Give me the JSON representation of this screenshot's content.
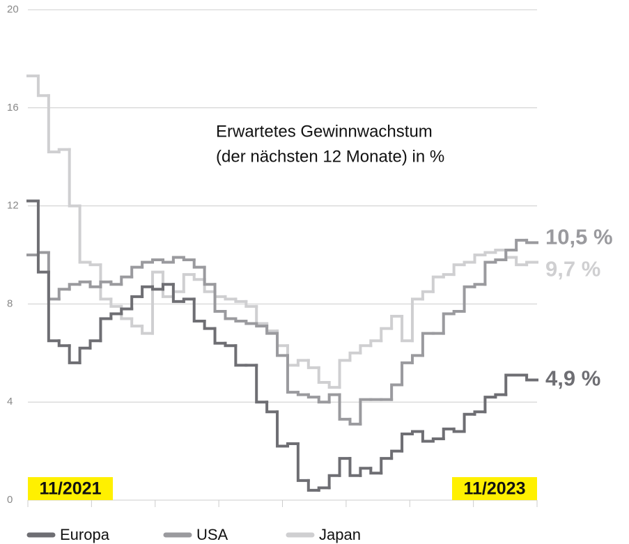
{
  "chart_data": {
    "type": "step-line",
    "title": "Erwartetes Gewinnwachstum",
    "subtitle": "(der nächsten 12 Monate) in %",
    "annotations": [
      "11/2021",
      "11/2023"
    ],
    "categories": [
      null,
      null,
      null,
      null,
      null,
      null,
      null,
      null,
      null,
      null,
      null,
      null,
      null,
      null,
      null,
      null,
      null,
      null,
      null,
      null,
      null,
      null,
      null,
      null,
      null,
      null,
      null,
      null,
      null,
      null,
      null,
      null,
      null,
      null,
      null,
      null,
      null,
      null,
      null,
      null,
      null,
      null,
      null,
      null,
      null,
      null,
      null,
      null,
      null
    ],
    "series": [
      {
        "name": "Europa",
        "color": "#6e6e73",
        "end_label": "4,9 %",
        "values": [
          12.2,
          9.3,
          6.5,
          6.3,
          5.6,
          6.2,
          6.5,
          7.4,
          7.6,
          7.8,
          8.3,
          8.7,
          8.6,
          8.8,
          8.1,
          8.2,
          7.3,
          7.0,
          6.4,
          6.3,
          5.5,
          5.5,
          4.0,
          3.6,
          2.2,
          2.3,
          0.8,
          0.4,
          0.5,
          1.0,
          1.7,
          1.0,
          1.3,
          1.1,
          1.7,
          2.0,
          2.7,
          2.8,
          2.4,
          2.5,
          2.9,
          2.8,
          3.5,
          3.6,
          4.2,
          4.3,
          5.1,
          5.1,
          4.9
        ]
      },
      {
        "name": "USA",
        "color": "#9a9a9e",
        "end_label": "10,5 %",
        "values": [
          10.0,
          10.1,
          8.2,
          8.6,
          8.8,
          8.9,
          8.7,
          8.9,
          8.8,
          9.1,
          9.5,
          9.7,
          9.8,
          9.7,
          9.9,
          9.8,
          9.5,
          8.8,
          7.7,
          7.4,
          7.3,
          7.2,
          7.1,
          6.8,
          5.9,
          4.4,
          4.3,
          4.2,
          4.0,
          4.3,
          3.3,
          3.1,
          4.1,
          4.1,
          4.1,
          4.7,
          5.6,
          5.9,
          6.8,
          6.8,
          7.6,
          7.7,
          8.7,
          8.8,
          9.7,
          9.8,
          10.2,
          10.6,
          10.5
        ]
      },
      {
        "name": "Japan",
        "color": "#cfcfd1",
        "end_label": "9,7 %",
        "values": [
          17.3,
          16.5,
          14.2,
          14.3,
          12.0,
          9.7,
          9.6,
          8.2,
          7.9,
          7.4,
          7.1,
          6.8,
          9.3,
          8.3,
          8.5,
          9.2,
          9.0,
          8.5,
          8.3,
          8.2,
          8.1,
          7.9,
          7.2,
          6.9,
          6.3,
          5.5,
          5.7,
          5.4,
          4.8,
          4.6,
          5.7,
          6.0,
          6.3,
          6.5,
          7.0,
          7.5,
          6.5,
          8.2,
          8.5,
          9.1,
          9.2,
          9.6,
          9.7,
          10.0,
          10.1,
          10.2,
          9.9,
          9.6,
          9.7
        ]
      }
    ],
    "ylim": [
      0,
      20
    ],
    "yticks": [
      0,
      4,
      8,
      12,
      16,
      20
    ],
    "grid": true
  }
}
